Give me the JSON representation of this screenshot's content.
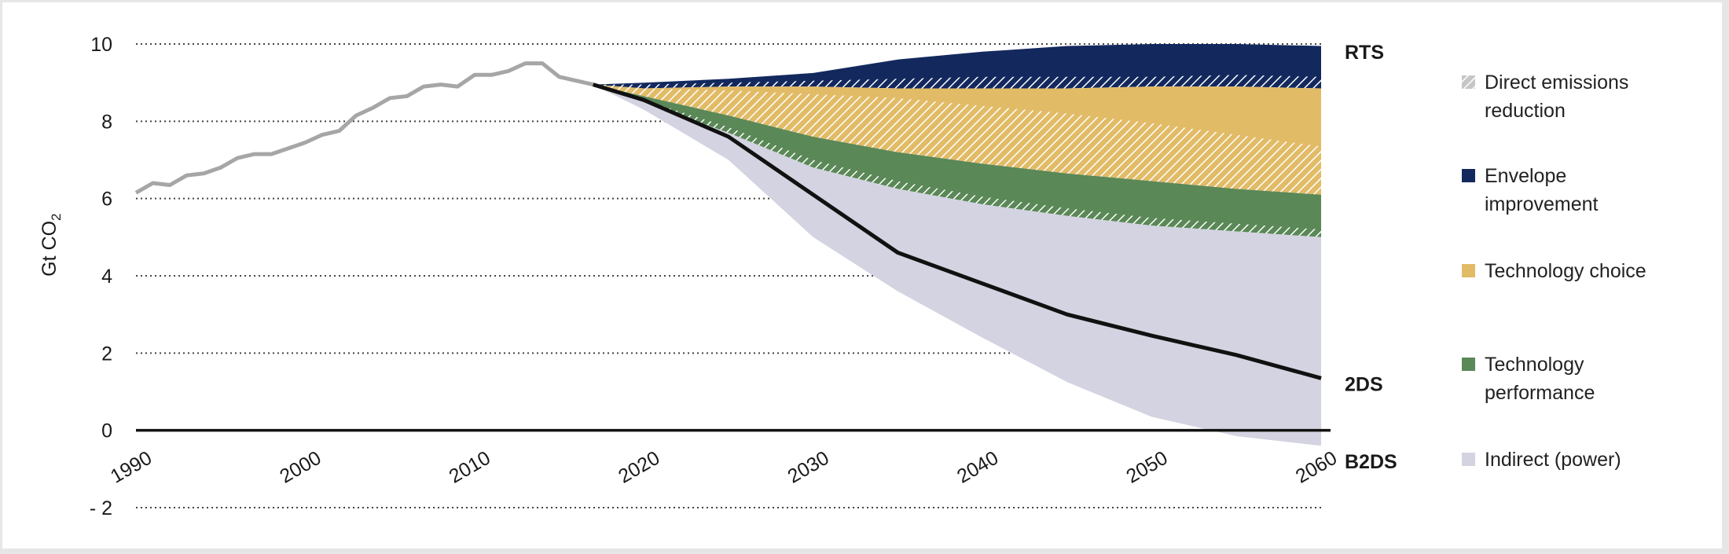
{
  "colors": {
    "historical": "#a6a6a6",
    "b2ds_path": "#111111",
    "envelope": "#13295e",
    "technology_choice": "#e2bb67",
    "technology_performance": "#5a8857",
    "indirect_power": "#d3d3e1",
    "hatch": "#ffffff",
    "gridline": "#444444",
    "zero_line": "#111111"
  },
  "chart_data": {
    "type": "area",
    "ylabel_main": "Gt CO",
    "ylabel_sub": "2",
    "ylim": [
      -2,
      10
    ],
    "xlim": [
      1990,
      2060
    ],
    "grid": "horizontal-dotted",
    "legend_position": "right",
    "yticks": [
      {
        "value": 10,
        "label": "10"
      },
      {
        "value": 8,
        "label": "8"
      },
      {
        "value": 6,
        "label": "6"
      },
      {
        "value": 4,
        "label": "4"
      },
      {
        "value": 2,
        "label": "2"
      },
      {
        "value": 0,
        "label": "0"
      },
      {
        "value": -2,
        "label": "- 2"
      }
    ],
    "xticks": [
      {
        "value": 1990,
        "label": "1990"
      },
      {
        "value": 2000,
        "label": "2000"
      },
      {
        "value": 2010,
        "label": "2010"
      },
      {
        "value": 2020,
        "label": "2020"
      },
      {
        "value": 2030,
        "label": "2030"
      },
      {
        "value": 2040,
        "label": "2040"
      },
      {
        "value": 2050,
        "label": "2050"
      },
      {
        "value": 2060,
        "label": "2060"
      }
    ],
    "scenario_labels": [
      {
        "text": "RTS",
        "value": 9.8
      },
      {
        "text": "2DS",
        "value": 1.2
      },
      {
        "text": "B2DS",
        "value": -0.8
      }
    ],
    "legend": [
      {
        "key": "direct",
        "label_lines": [
          "Direct  emissions",
          "reduction"
        ],
        "swatch": "hatch"
      },
      {
        "key": "envelope",
        "label_lines": [
          "Envelope",
          "improvement"
        ],
        "swatch": "envelope"
      },
      {
        "key": "choice",
        "label_lines": [
          "Technology choice"
        ],
        "swatch": "technology_choice"
      },
      {
        "key": "performance",
        "label_lines": [
          "Technology",
          "performance"
        ],
        "swatch": "technology_performance"
      },
      {
        "key": "indirect",
        "label_lines": [
          "Indirect (power)"
        ],
        "swatch": "indirect_power"
      }
    ],
    "historical": {
      "x": [
        1990,
        1991,
        1992,
        1993,
        1994,
        1995,
        1996,
        1997,
        1998,
        1999,
        2000,
        2001,
        2002,
        2003,
        2004,
        2005,
        2006,
        2007,
        2008,
        2009,
        2010,
        2011,
        2012,
        2013,
        2014,
        2015,
        2016,
        2017
      ],
      "y": [
        6.15,
        6.4,
        6.35,
        6.6,
        6.65,
        6.8,
        7.05,
        7.15,
        7.15,
        7.3,
        7.45,
        7.65,
        7.75,
        8.15,
        8.35,
        8.6,
        8.65,
        8.9,
        8.95,
        8.9,
        9.2,
        9.2,
        9.3,
        9.5,
        9.5,
        9.15,
        9.05,
        8.95
      ]
    },
    "projection_years": [
      2017,
      2020,
      2025,
      2030,
      2035,
      2040,
      2045,
      2050,
      2055,
      2060
    ],
    "series": [
      {
        "name": "RTS",
        "values": [
          8.95,
          9.0,
          9.1,
          9.25,
          9.6,
          9.8,
          9.95,
          10.0,
          10.0,
          9.95
        ]
      },
      {
        "name": "Envelope improvement (lower bound)",
        "values": [
          8.95,
          8.85,
          8.9,
          8.9,
          8.85,
          8.85,
          8.85,
          8.9,
          8.9,
          8.85
        ]
      },
      {
        "name": "Technology choice (lower bound)",
        "values": [
          8.95,
          8.65,
          8.15,
          7.6,
          7.2,
          6.9,
          6.65,
          6.45,
          6.25,
          6.1
        ]
      },
      {
        "name": "Technology performance (lower bound)",
        "values": [
          8.95,
          8.5,
          7.7,
          6.8,
          6.25,
          5.85,
          5.55,
          5.3,
          5.15,
          5.0
        ]
      },
      {
        "name": "2DS",
        "values": [
          8.95,
          8.55,
          7.6,
          6.1,
          4.6,
          3.8,
          3.0,
          2.45,
          1.95,
          1.35
        ]
      },
      {
        "name": "B2DS",
        "values": [
          8.95,
          8.3,
          7.0,
          5.0,
          3.6,
          2.4,
          1.25,
          0.35,
          -0.15,
          -0.4
        ]
      }
    ],
    "hatched_bands": [
      {
        "on": "envelope",
        "values_top": [
          8.95,
          8.95,
          9.0,
          9.05,
          9.1,
          9.15,
          9.15,
          9.15,
          9.2,
          9.15
        ],
        "values_bottom": [
          8.95,
          8.85,
          8.9,
          8.9,
          8.85,
          8.85,
          8.85,
          8.9,
          8.9,
          8.85
        ]
      },
      {
        "on": "technology_choice",
        "values_top": [
          8.95,
          8.85,
          8.8,
          8.7,
          8.6,
          8.4,
          8.2,
          7.95,
          7.65,
          7.35
        ],
        "values_bottom": [
          8.95,
          8.65,
          8.15,
          7.6,
          7.2,
          6.9,
          6.65,
          6.45,
          6.25,
          6.1
        ]
      },
      {
        "on": "technology_performance",
        "values_top": [
          8.95,
          8.55,
          7.85,
          7.0,
          6.45,
          6.05,
          5.75,
          5.5,
          5.35,
          5.2
        ],
        "values_bottom": [
          8.95,
          8.5,
          7.7,
          6.8,
          6.25,
          5.85,
          5.55,
          5.3,
          5.15,
          5.0
        ]
      }
    ]
  }
}
